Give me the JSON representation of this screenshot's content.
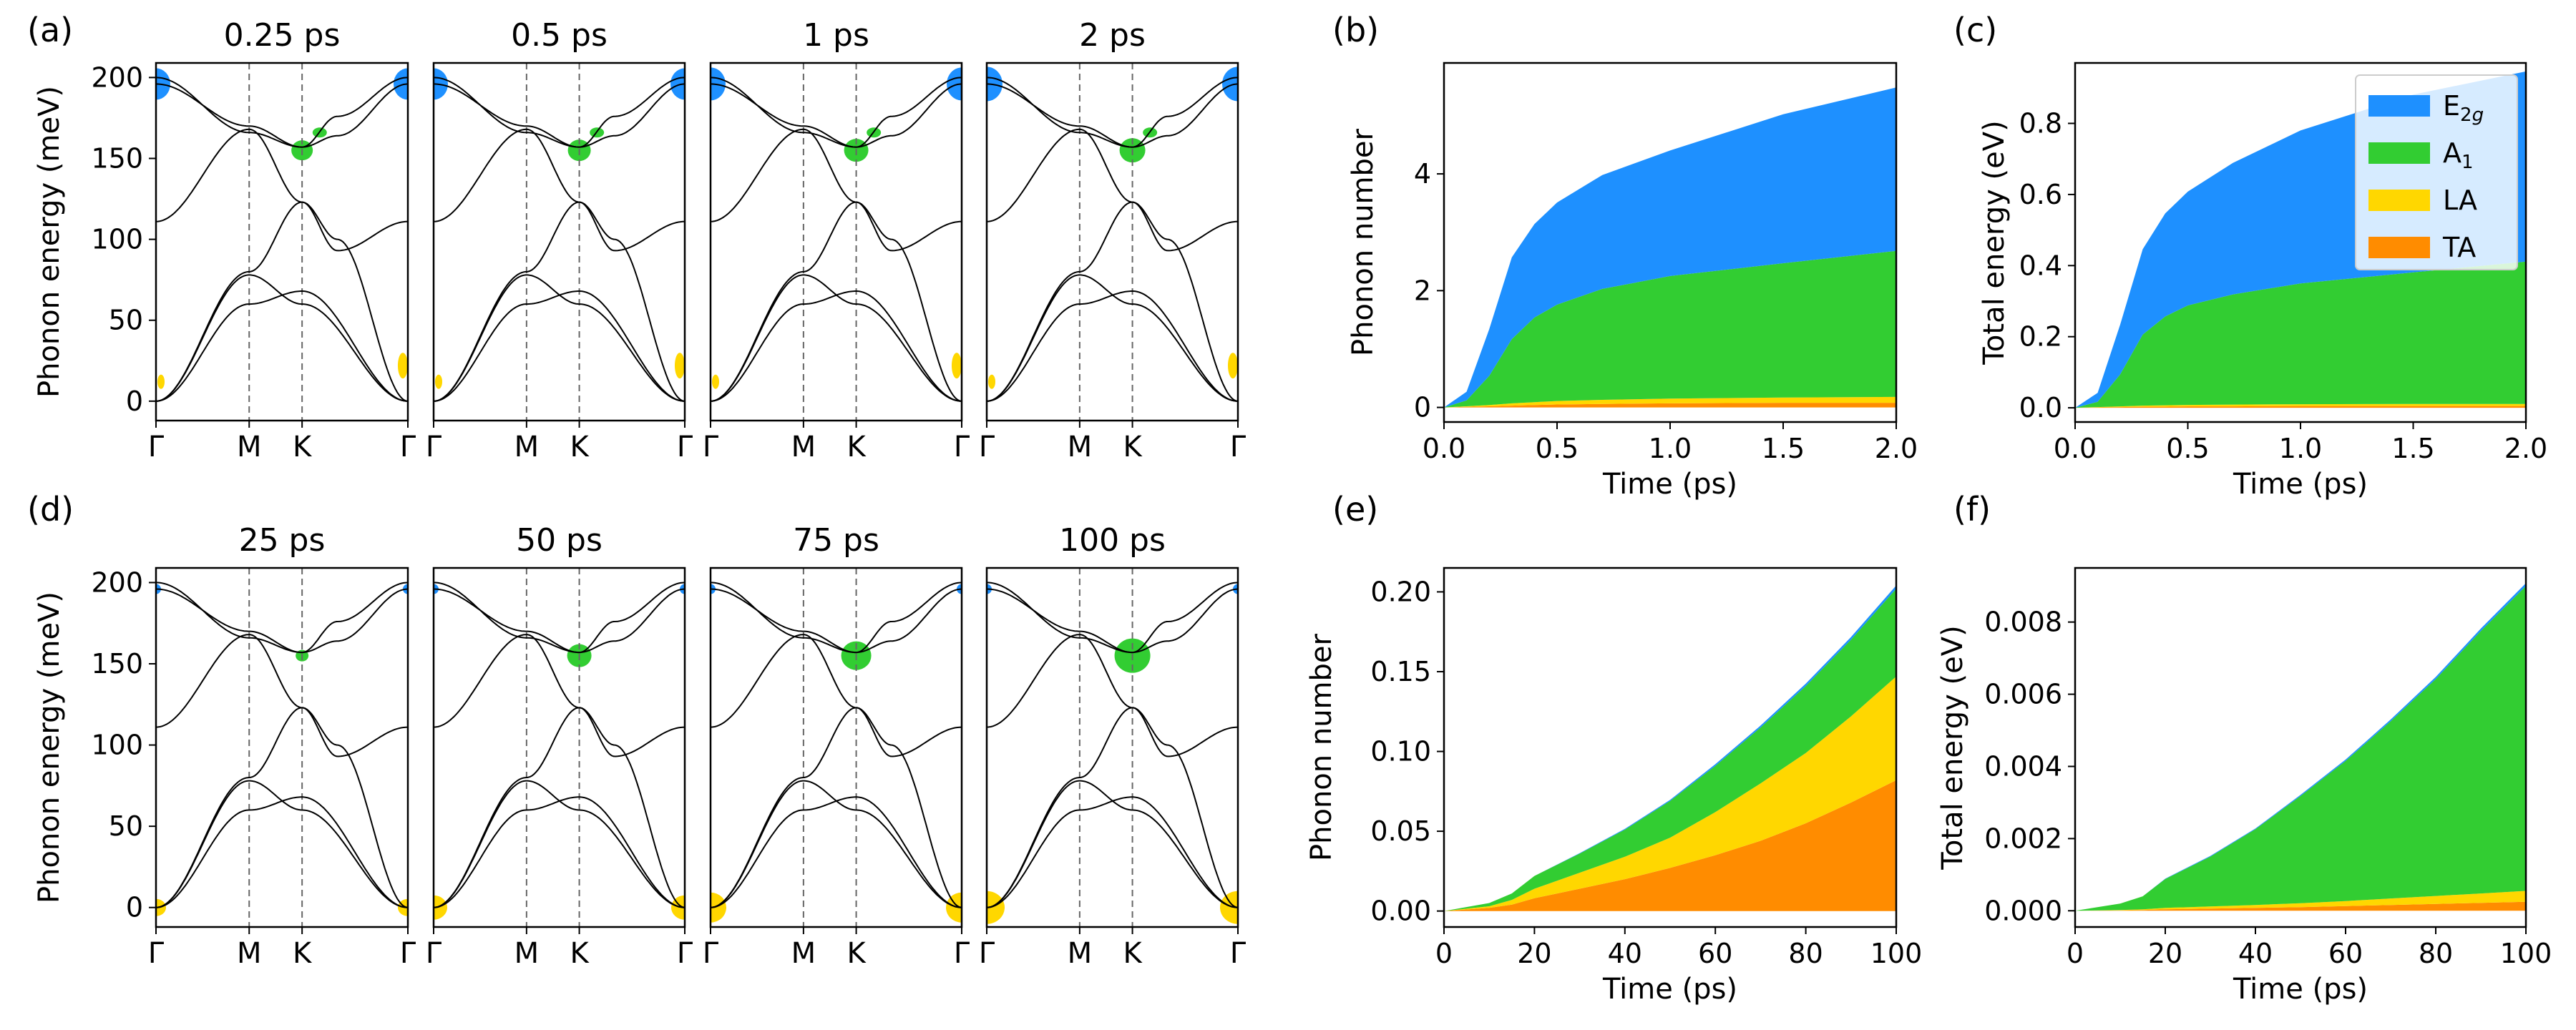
{
  "figure": {
    "panel_labels": [
      "(a)",
      "(b)",
      "(c)",
      "(d)",
      "(e)",
      "(f)"
    ],
    "path_labels": [
      "Γ",
      "M",
      "K",
      "Γ"
    ],
    "dispersion_ylabel": "Phonon energy (meV)",
    "dispersion_yticks": [
      "0",
      "50",
      "100",
      "150",
      "200"
    ],
    "row_a_times": [
      "0.25 ps",
      "0.5 ps",
      "1 ps",
      "2 ps"
    ],
    "row_d_times": [
      "25 ps",
      "50 ps",
      "75 ps",
      "100 ps"
    ]
  },
  "legend": {
    "entries": [
      {
        "label": "E",
        "sub": "2g",
        "color": "#1e90ff"
      },
      {
        "label": "A",
        "sub": "1",
        "color": "#32cd32"
      },
      {
        "label": "LA",
        "sub": "",
        "color": "#ffd700"
      },
      {
        "label": "TA",
        "sub": "",
        "color": "#ff8c00"
      }
    ]
  },
  "colors": {
    "E2g": "#1e90ff",
    "A1": "#32cd32",
    "LA": "#ffd700",
    "TA": "#ff8c00",
    "line": "#000000"
  },
  "chart_data": [
    {
      "id": "b",
      "type": "area",
      "stacked": true,
      "xlabel": "Time (ps)",
      "ylabel": "Phonon number",
      "xlim": [
        0,
        2.0
      ],
      "ylim": [
        -0.25,
        5.9
      ],
      "xticks": [
        0,
        0.5,
        1.0,
        1.5,
        2.0
      ],
      "xtick_labels": [
        "0.0",
        "0.5",
        "1.0",
        "1.5",
        "2.0"
      ],
      "yticks": [
        0,
        2,
        4
      ],
      "ytick_labels": [
        "0",
        "2",
        "4"
      ],
      "x": [
        0,
        0.1,
        0.2,
        0.3,
        0.4,
        0.5,
        0.7,
        1.0,
        1.5,
        2.0
      ],
      "series": [
        {
          "name": "TA",
          "values": [
            0,
            0.01,
            0.02,
            0.03,
            0.04,
            0.05,
            0.06,
            0.07,
            0.08,
            0.08
          ]
        },
        {
          "name": "LA",
          "values": [
            0,
            0.01,
            0.02,
            0.04,
            0.05,
            0.06,
            0.07,
            0.08,
            0.09,
            0.1
          ]
        },
        {
          "name": "A1",
          "values": [
            0,
            0.1,
            0.5,
            1.1,
            1.45,
            1.65,
            1.9,
            2.1,
            2.3,
            2.5
          ]
        },
        {
          "name": "E2g",
          "values": [
            0,
            0.15,
            0.8,
            1.4,
            1.6,
            1.75,
            1.95,
            2.15,
            2.55,
            2.8
          ]
        }
      ]
    },
    {
      "id": "c",
      "type": "area",
      "stacked": true,
      "xlabel": "Time (ps)",
      "ylabel": "Total energy (eV)",
      "xlim": [
        0,
        2.0
      ],
      "ylim": [
        -0.04,
        0.97
      ],
      "xticks": [
        0,
        0.5,
        1.0,
        1.5,
        2.0
      ],
      "xtick_labels": [
        "0.0",
        "0.5",
        "1.0",
        "1.5",
        "2.0"
      ],
      "yticks": [
        0,
        0.2,
        0.4,
        0.6,
        0.8
      ],
      "ytick_labels": [
        "0.0",
        "0.2",
        "0.4",
        "0.6",
        "0.8"
      ],
      "x": [
        0,
        0.1,
        0.2,
        0.3,
        0.4,
        0.5,
        0.7,
        1.0,
        1.5,
        2.0
      ],
      "series": [
        {
          "name": "TA",
          "values": [
            0,
            0.001,
            0.002,
            0.003,
            0.003,
            0.004,
            0.004,
            0.005,
            0.005,
            0.005
          ]
        },
        {
          "name": "LA",
          "values": [
            0,
            0.001,
            0.002,
            0.003,
            0.004,
            0.004,
            0.005,
            0.005,
            0.006,
            0.006
          ]
        },
        {
          "name": "A1",
          "values": [
            0,
            0.015,
            0.09,
            0.2,
            0.25,
            0.28,
            0.31,
            0.34,
            0.37,
            0.4
          ]
        },
        {
          "name": "E2g",
          "values": [
            0,
            0.025,
            0.14,
            0.24,
            0.29,
            0.32,
            0.37,
            0.43,
            0.5,
            0.535
          ]
        }
      ]
    },
    {
      "id": "e",
      "type": "area",
      "stacked": true,
      "xlabel": "Time (ps)",
      "ylabel": "Phonon number",
      "xlim": [
        0,
        100
      ],
      "ylim": [
        -0.01,
        0.215
      ],
      "xticks": [
        0,
        20,
        40,
        60,
        80,
        100
      ],
      "xtick_labels": [
        "0",
        "20",
        "40",
        "60",
        "80",
        "100"
      ],
      "yticks": [
        0,
        0.05,
        0.1,
        0.15,
        0.2
      ],
      "ytick_labels": [
        "0.00",
        "0.05",
        "0.10",
        "0.15",
        "0.20"
      ],
      "x": [
        0,
        10,
        15,
        20,
        30,
        40,
        50,
        60,
        70,
        80,
        90,
        100
      ],
      "series": [
        {
          "name": "TA",
          "values": [
            0,
            0.002,
            0.004,
            0.008,
            0.014,
            0.02,
            0.027,
            0.035,
            0.044,
            0.055,
            0.068,
            0.082
          ]
        },
        {
          "name": "LA",
          "values": [
            0,
            0.001,
            0.003,
            0.006,
            0.01,
            0.014,
            0.019,
            0.027,
            0.036,
            0.044,
            0.054,
            0.065
          ]
        },
        {
          "name": "A1",
          "values": [
            0,
            0.002,
            0.004,
            0.008,
            0.012,
            0.017,
            0.023,
            0.029,
            0.035,
            0.042,
            0.048,
            0.055
          ]
        },
        {
          "name": "E2g",
          "values": [
            0,
            0,
            0,
            0,
            0.0003,
            0.0005,
            0.0007,
            0.001,
            0.0012,
            0.0015,
            0.0017,
            0.002
          ]
        }
      ]
    },
    {
      "id": "f",
      "type": "area",
      "stacked": true,
      "xlabel": "Time (ps)",
      "ylabel": "Total energy (eV)",
      "xlim": [
        0,
        100
      ],
      "ylim": [
        -0.00045,
        0.0095
      ],
      "xticks": [
        0,
        20,
        40,
        60,
        80,
        100
      ],
      "xtick_labels": [
        "0",
        "20",
        "40",
        "60",
        "80",
        "100"
      ],
      "yticks": [
        0,
        0.002,
        0.004,
        0.006,
        0.008
      ],
      "ytick_labels": [
        "0.000",
        "0.002",
        "0.004",
        "0.006",
        "0.008"
      ],
      "x": [
        0,
        10,
        15,
        20,
        30,
        40,
        50,
        60,
        70,
        80,
        90,
        100
      ],
      "series": [
        {
          "name": "TA",
          "values": [
            0,
            1e-05,
            2e-05,
            4e-05,
            6e-05,
            8e-05,
            0.0001,
            0.00013,
            0.00016,
            0.00019,
            0.00022,
            0.00025
          ]
        },
        {
          "name": "LA",
          "values": [
            0,
            1e-05,
            2e-05,
            4e-05,
            6e-05,
            8e-05,
            0.00011,
            0.00014,
            0.00018,
            0.00022,
            0.00026,
            0.0003
          ]
        },
        {
          "name": "A1",
          "values": [
            0,
            0.00018,
            0.00036,
            0.0008,
            0.00138,
            0.0021,
            0.00297,
            0.00388,
            0.00491,
            0.00601,
            0.00727,
            0.00845
          ]
        },
        {
          "name": "E2g",
          "values": [
            0,
            0,
            0,
            1e-05,
            2e-05,
            2e-05,
            3e-05,
            4e-05,
            5e-05,
            6e-05,
            7e-05,
            8e-05
          ]
        }
      ]
    }
  ]
}
